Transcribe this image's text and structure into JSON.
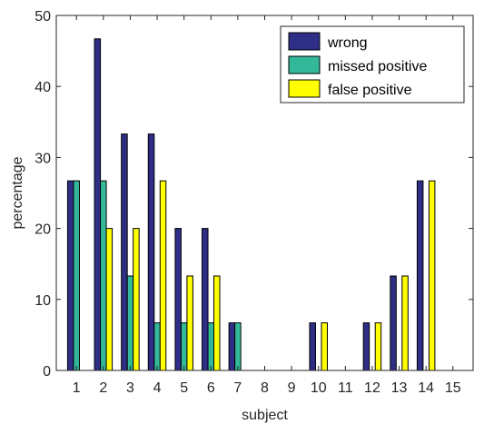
{
  "chart_data": {
    "type": "bar",
    "title": "",
    "xlabel": "subject",
    "ylabel": "percentage",
    "categories": [
      "1",
      "2",
      "3",
      "4",
      "5",
      "6",
      "7",
      "8",
      "9",
      "10",
      "11",
      "12",
      "13",
      "14",
      "15"
    ],
    "ylim": [
      0,
      50
    ],
    "yticks": [
      0,
      10,
      20,
      30,
      40,
      50
    ],
    "grid": false,
    "legend_position": "top-right",
    "series": [
      {
        "name": "wrong",
        "color": "#2e2e87",
        "values": [
          26.7,
          46.7,
          33.3,
          33.3,
          20,
          20,
          6.7,
          0,
          0,
          6.7,
          0,
          6.7,
          13.3,
          26.7,
          0
        ]
      },
      {
        "name": "missed positive",
        "color": "#33b89a",
        "values": [
          26.7,
          26.7,
          13.3,
          6.7,
          6.7,
          6.7,
          6.7,
          0,
          0,
          0,
          0,
          0,
          0,
          0,
          0
        ]
      },
      {
        "name": "false positive",
        "color": "#ffff00",
        "values": [
          0,
          20,
          20,
          26.7,
          13.3,
          13.3,
          0,
          0,
          0,
          6.7,
          0,
          6.7,
          13.3,
          26.7,
          0
        ]
      }
    ]
  }
}
